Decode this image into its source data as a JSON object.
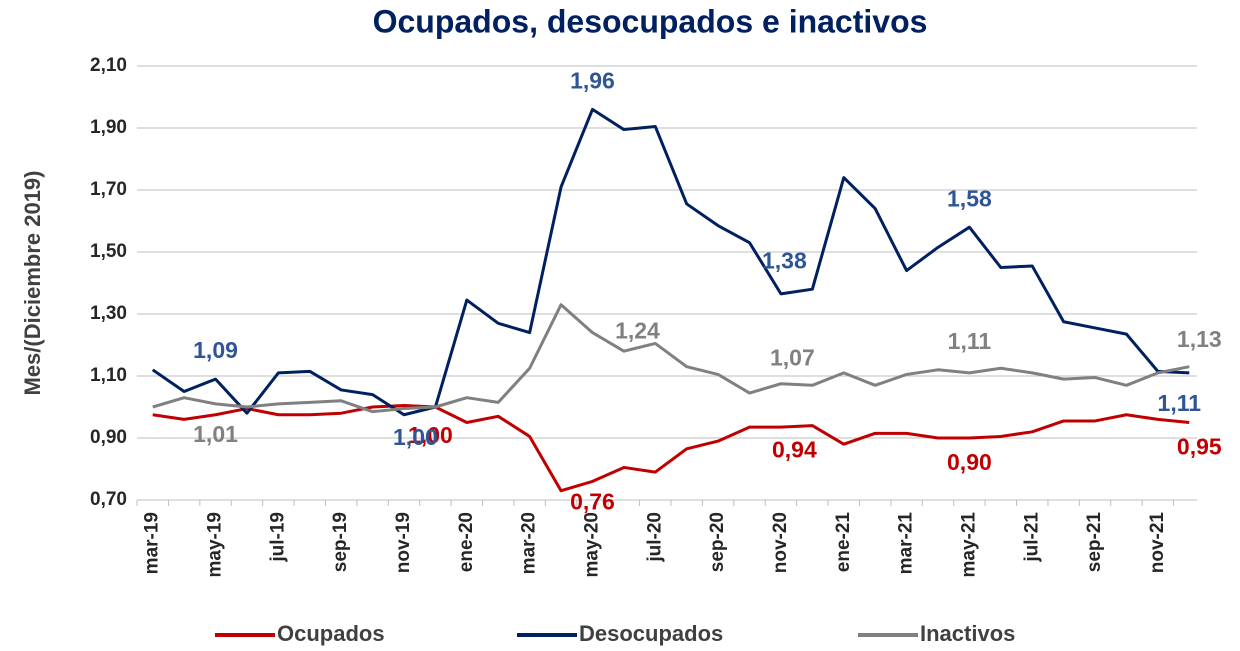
{
  "chart_data": {
    "type": "line",
    "title": "Ocupados, desocupados e inactivos",
    "y_label": "Mes/(Diciembre 2019)",
    "categories": [
      "mar-19",
      null,
      "may-19",
      null,
      "jul-19",
      null,
      "sep-19",
      null,
      "nov-19",
      null,
      "ene-20",
      null,
      "mar-20",
      null,
      "may-20",
      null,
      "jul-20",
      null,
      "sep-20",
      null,
      "nov-20",
      null,
      "ene-21",
      null,
      "mar-21",
      null,
      "may-21",
      null,
      "jul-21",
      null,
      "sep-21",
      null,
      "nov-21",
      null
    ],
    "ylim": [
      0.7,
      2.1
    ],
    "yticks": [
      {
        "value": 0.7,
        "label": "0,70"
      },
      {
        "value": 0.9,
        "label": "0,90"
      },
      {
        "value": 1.1,
        "label": "1,10"
      },
      {
        "value": 1.3,
        "label": "1,30"
      },
      {
        "value": 1.5,
        "label": "1,50"
      },
      {
        "value": 1.7,
        "label": "1,70"
      },
      {
        "value": 1.9,
        "label": "1,90"
      },
      {
        "value": 2.1,
        "label": "2,10"
      }
    ],
    "grid": true,
    "legend": "bottom",
    "series": [
      {
        "name": "Ocupados",
        "color": "#c00000",
        "values": [
          0.975,
          0.96,
          0.975,
          0.995,
          0.975,
          0.975,
          0.98,
          1.0,
          1.005,
          1.0,
          0.95,
          0.97,
          0.905,
          0.73,
          0.76,
          0.805,
          0.79,
          0.865,
          0.89,
          0.935,
          0.935,
          0.94,
          0.88,
          0.915,
          0.915,
          0.9,
          0.9,
          0.905,
          0.92,
          0.955,
          0.955,
          0.975,
          0.96,
          0.95
        ],
        "value_labels": [
          null,
          null,
          null,
          null,
          null,
          null,
          null,
          null,
          null,
          "1,00",
          null,
          null,
          null,
          null,
          "0,76",
          null,
          null,
          null,
          null,
          null,
          null,
          "0,94",
          null,
          null,
          null,
          null,
          "0,90",
          null,
          null,
          null,
          null,
          null,
          null,
          "0,95"
        ]
      },
      {
        "name": "Desocupados",
        "color": "#002060",
        "values": [
          1.12,
          1.05,
          1.09,
          0.98,
          1.11,
          1.115,
          1.055,
          1.04,
          0.975,
          1.0,
          1.345,
          1.27,
          1.24,
          1.71,
          1.96,
          1.895,
          1.905,
          1.655,
          1.585,
          1.53,
          1.365,
          1.38,
          1.74,
          1.64,
          1.44,
          1.515,
          1.58,
          1.45,
          1.455,
          1.275,
          1.255,
          1.235,
          1.115,
          1.11
        ],
        "value_labels": [
          null,
          null,
          "1,09",
          null,
          null,
          null,
          null,
          null,
          null,
          "1,00",
          null,
          null,
          null,
          null,
          "1,96",
          null,
          null,
          null,
          null,
          null,
          null,
          "1,38",
          null,
          null,
          null,
          null,
          "1,58",
          null,
          null,
          null,
          null,
          null,
          null,
          "1,11"
        ]
      },
      {
        "name": "Inactivos",
        "color": "#808080",
        "values": [
          1.0,
          1.03,
          1.01,
          1.0,
          1.01,
          1.015,
          1.02,
          0.985,
          0.995,
          1.0,
          1.03,
          1.015,
          1.125,
          1.33,
          1.24,
          1.18,
          1.205,
          1.13,
          1.105,
          1.045,
          1.075,
          1.07,
          1.11,
          1.07,
          1.105,
          1.12,
          1.11,
          1.125,
          1.11,
          1.09,
          1.095,
          1.07,
          1.11,
          1.13
        ],
        "value_labels": [
          null,
          null,
          "1,01",
          null,
          null,
          null,
          null,
          null,
          null,
          null,
          null,
          null,
          null,
          null,
          "1,24",
          null,
          null,
          null,
          null,
          null,
          null,
          "1,07",
          null,
          null,
          null,
          null,
          "1,11",
          null,
          null,
          null,
          null,
          null,
          null,
          "1,13"
        ]
      }
    ]
  }
}
